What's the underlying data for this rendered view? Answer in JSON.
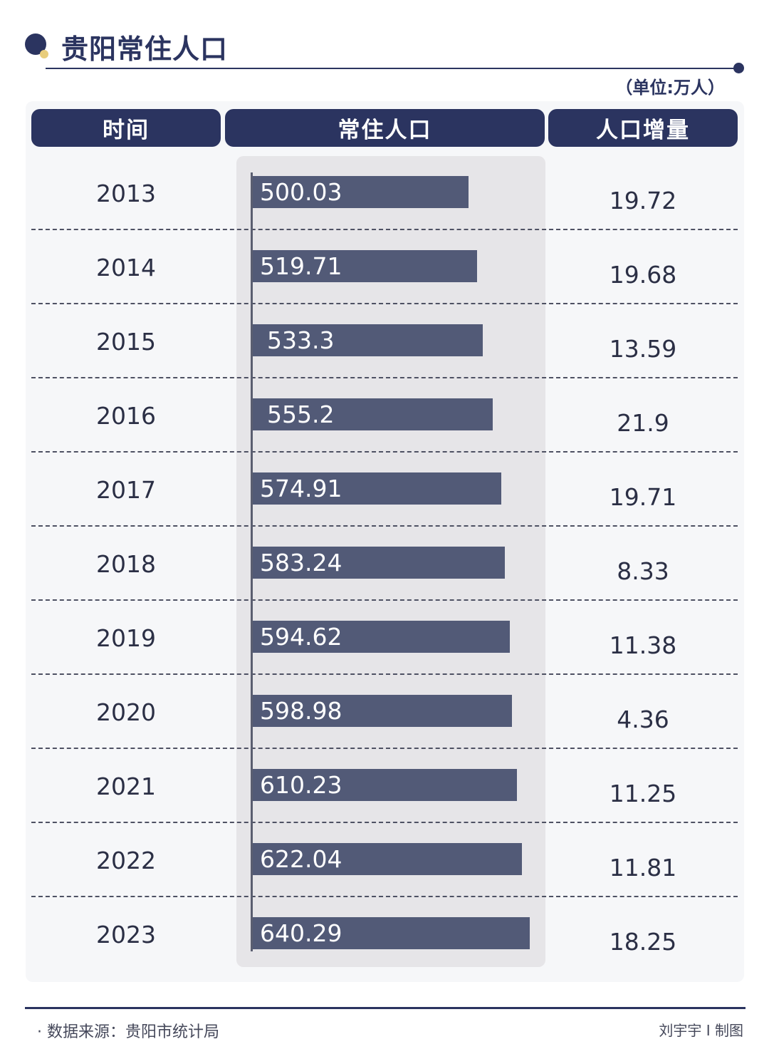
{
  "title": "贵阳常住人口",
  "unit": "（单位:万人）",
  "headers": {
    "year": "时间",
    "population": "常住人口",
    "increase": "人口增量"
  },
  "chart_data": {
    "type": "bar",
    "title": "贵阳常住人口",
    "unit": "（单位:万人）",
    "categories": [
      "2013",
      "2014",
      "2015",
      "2016",
      "2017",
      "2018",
      "2019",
      "2020",
      "2021",
      "2022",
      "2023"
    ],
    "series": [
      {
        "name": "常住人口",
        "values": [
          500.03,
          519.71,
          533.3,
          555.2,
          574.91,
          583.24,
          594.62,
          598.98,
          610.23,
          622.04,
          640.29
        ]
      },
      {
        "name": "人口增量",
        "values": [
          19.72,
          19.68,
          13.59,
          21.9,
          19.71,
          8.33,
          11.38,
          4.36,
          11.25,
          11.81,
          18.25
        ]
      }
    ],
    "population_labels": [
      "500.03",
      "519.71",
      "533.3",
      "555.2",
      "574.91",
      "583.24",
      "594.62",
      "598.98",
      "610.23",
      "622.04",
      "640.29"
    ],
    "increase_labels": [
      "19.72",
      "19.68",
      "13.59",
      "21.9",
      "19.71",
      "8.33",
      "11.38",
      "4.36",
      "11.25",
      "11.81",
      "18.25"
    ]
  },
  "footer": {
    "source": "· 数据来源：贵阳市统计局",
    "credit": "刘宇宇 I 制图"
  }
}
